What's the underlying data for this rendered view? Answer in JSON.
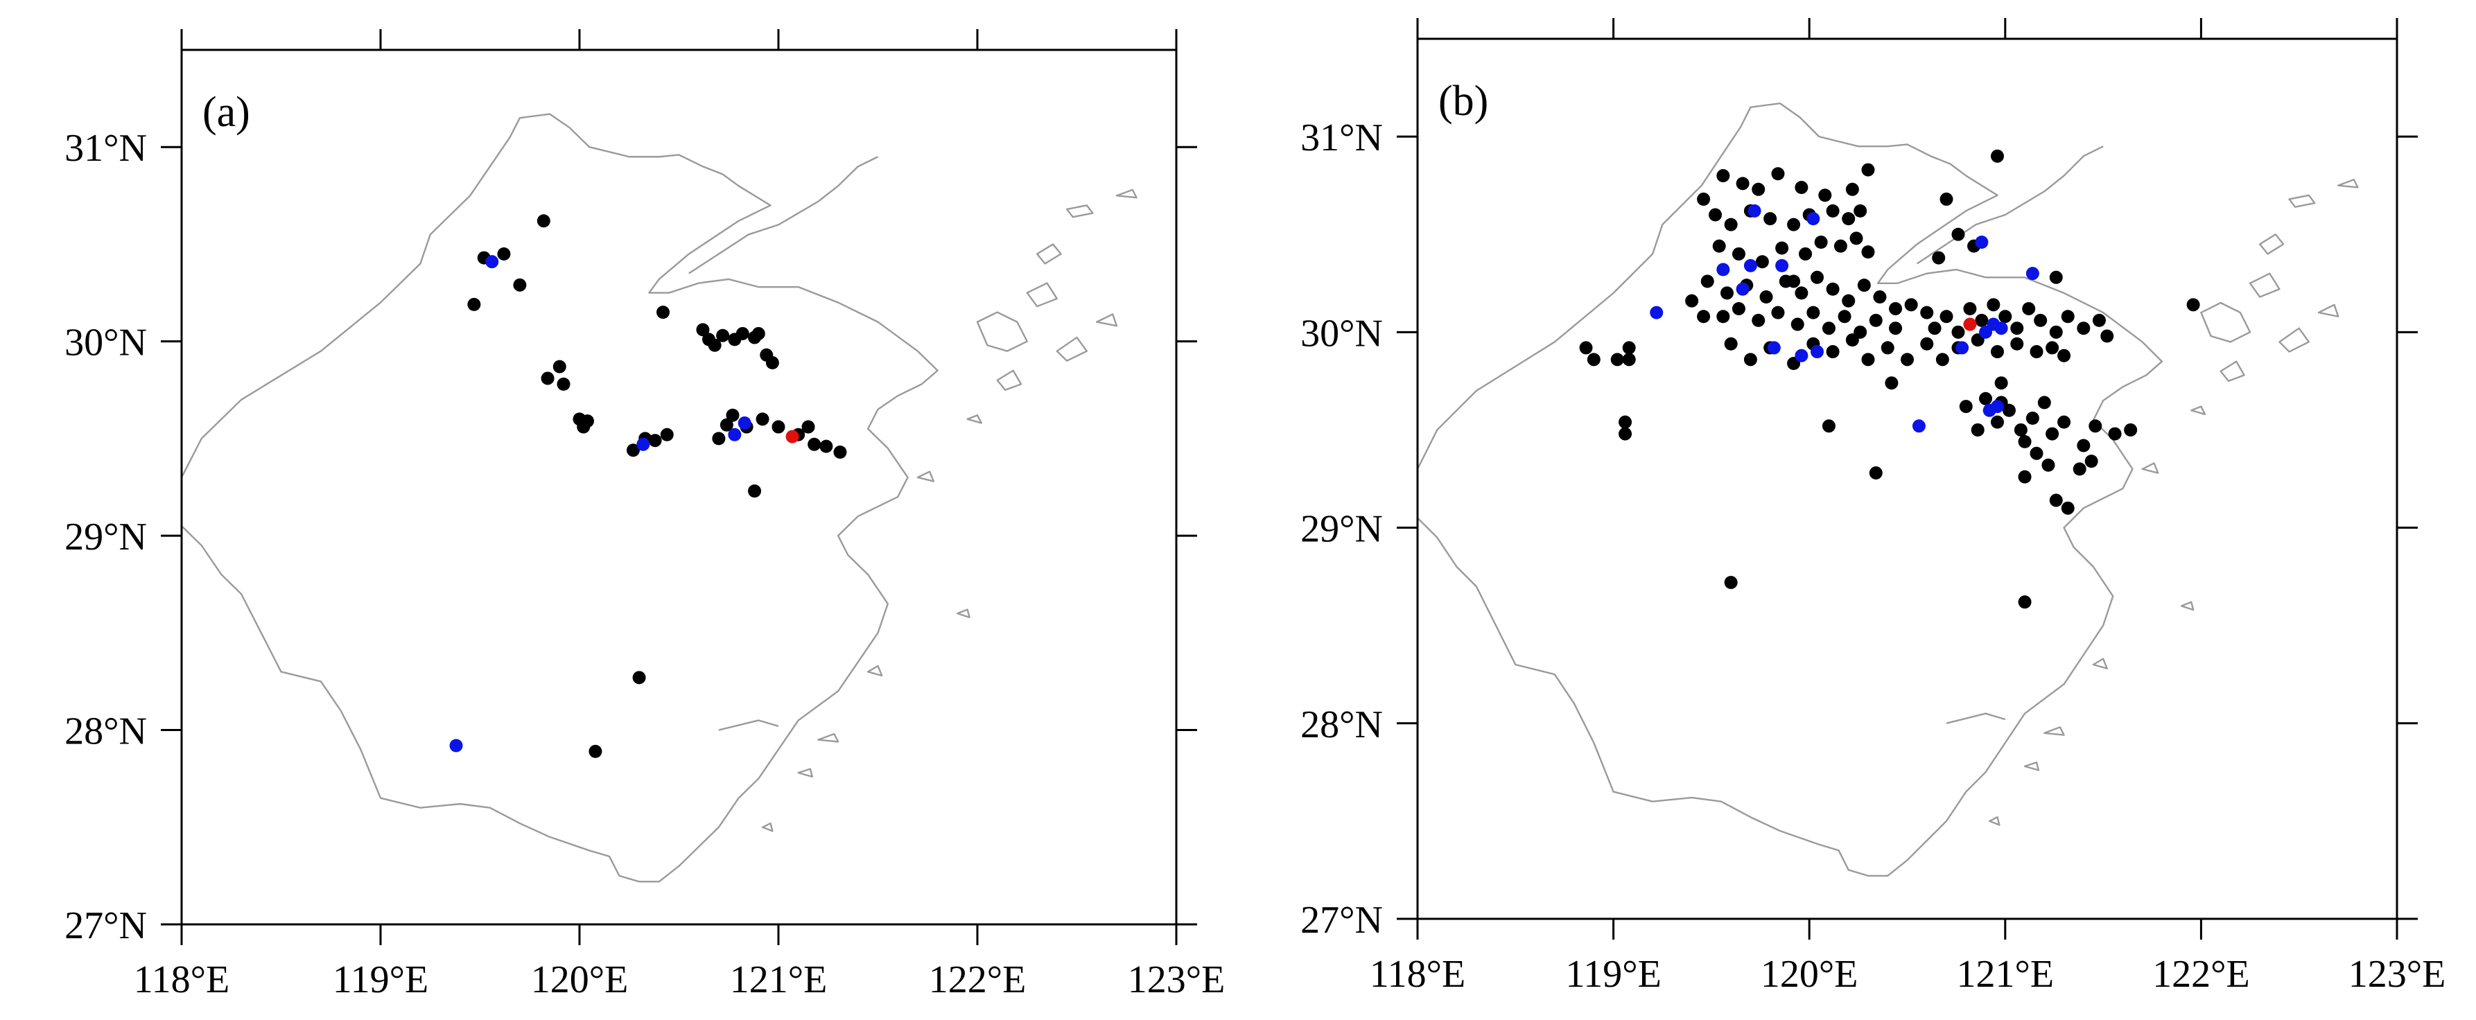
{
  "figure": {
    "colors": {
      "station_black": "#000000",
      "station_blue": "#0a14e6",
      "station_red": "#e01010",
      "coast": "#9a9a9a"
    },
    "lon_range": [
      118,
      123
    ],
    "lat_range": [
      27,
      31.5
    ],
    "panels": [
      {
        "label": "(a)",
        "xtick_labels": [
          "118°E",
          "119°E",
          "120°E",
          "121°E",
          "122°E",
          "123°E"
        ],
        "ytick_labels": [
          "27°N",
          "28°N",
          "29°N",
          "30°N",
          "31°N"
        ],
        "stations": {
          "black": [
            [
              119.82,
              30.62
            ],
            [
              119.52,
              30.43
            ],
            [
              119.62,
              30.45
            ],
            [
              119.47,
              30.19
            ],
            [
              119.7,
              30.29
            ],
            [
              119.84,
              29.81
            ],
            [
              119.9,
              29.87
            ],
            [
              119.92,
              29.78
            ],
            [
              120.0,
              29.6
            ],
            [
              120.02,
              29.56
            ],
            [
              120.04,
              29.59
            ],
            [
              120.42,
              30.15
            ],
            [
              120.62,
              30.06
            ],
            [
              120.65,
              30.01
            ],
            [
              120.68,
              29.98
            ],
            [
              120.72,
              30.03
            ],
            [
              120.78,
              30.01
            ],
            [
              120.82,
              30.04
            ],
            [
              120.88,
              30.02
            ],
            [
              120.9,
              30.04
            ],
            [
              120.94,
              29.93
            ],
            [
              120.97,
              29.89
            ],
            [
              120.27,
              29.44
            ],
            [
              120.33,
              29.5
            ],
            [
              120.38,
              29.49
            ],
            [
              120.44,
              29.52
            ],
            [
              120.3,
              28.27
            ],
            [
              120.08,
              27.89
            ],
            [
              120.7,
              29.5
            ],
            [
              120.74,
              29.57
            ],
            [
              120.77,
              29.62
            ],
            [
              120.84,
              29.56
            ],
            [
              120.92,
              29.6
            ],
            [
              121.0,
              29.56
            ],
            [
              121.1,
              29.52
            ],
            [
              121.15,
              29.56
            ],
            [
              121.18,
              29.47
            ],
            [
              121.24,
              29.46
            ],
            [
              121.31,
              29.43
            ],
            [
              120.88,
              29.23
            ]
          ],
          "blue": [
            [
              119.56,
              30.41
            ],
            [
              120.32,
              29.47
            ],
            [
              120.78,
              29.52
            ],
            [
              120.83,
              29.58
            ],
            [
              119.38,
              27.92
            ]
          ],
          "red": [
            [
              121.07,
              29.51
            ]
          ]
        }
      },
      {
        "label": "(b)",
        "xtick_labels": [
          "118°E",
          "119°E",
          "120°E",
          "121°E",
          "122°E",
          "123°E"
        ],
        "ytick_labels": [
          "27°N",
          "28°N",
          "29°N",
          "30°N",
          "31°N"
        ],
        "stations": {
          "black": [
            [
              119.56,
              30.8
            ],
            [
              119.66,
              30.76
            ],
            [
              119.74,
              30.73
            ],
            [
              119.84,
              30.81
            ],
            [
              119.96,
              30.74
            ],
            [
              120.08,
              30.7
            ],
            [
              120.22,
              30.73
            ],
            [
              120.3,
              30.83
            ],
            [
              119.46,
              30.68
            ],
            [
              119.52,
              30.6
            ],
            [
              119.6,
              30.55
            ],
            [
              119.7,
              30.62
            ],
            [
              119.8,
              30.58
            ],
            [
              119.92,
              30.55
            ],
            [
              120.0,
              30.6
            ],
            [
              120.12,
              30.62
            ],
            [
              120.2,
              30.58
            ],
            [
              120.26,
              30.62
            ],
            [
              119.54,
              30.44
            ],
            [
              119.64,
              30.4
            ],
            [
              119.76,
              30.36
            ],
            [
              119.86,
              30.43
            ],
            [
              119.98,
              30.4
            ],
            [
              120.06,
              30.46
            ],
            [
              120.16,
              30.44
            ],
            [
              120.24,
              30.48
            ],
            [
              120.3,
              30.41
            ],
            [
              119.48,
              30.26
            ],
            [
              119.58,
              30.2
            ],
            [
              119.68,
              30.24
            ],
            [
              119.78,
              30.18
            ],
            [
              119.88,
              30.26
            ],
            [
              119.96,
              30.2
            ],
            [
              120.04,
              30.28
            ],
            [
              120.12,
              30.22
            ],
            [
              120.2,
              30.16
            ],
            [
              120.28,
              30.24
            ],
            [
              120.36,
              30.18
            ],
            [
              120.44,
              30.12
            ],
            [
              119.4,
              30.16
            ],
            [
              119.46,
              30.08
            ],
            [
              119.56,
              30.08
            ],
            [
              119.64,
              30.12
            ],
            [
              119.74,
              30.06
            ],
            [
              119.84,
              30.1
            ],
            [
              119.94,
              30.04
            ],
            [
              120.02,
              30.1
            ],
            [
              120.1,
              30.02
            ],
            [
              120.18,
              30.08
            ],
            [
              120.26,
              30.0
            ],
            [
              120.34,
              30.06
            ],
            [
              120.44,
              30.02
            ],
            [
              120.52,
              30.14
            ],
            [
              120.6,
              30.1
            ],
            [
              120.64,
              30.02
            ],
            [
              120.7,
              30.08
            ],
            [
              120.76,
              30.0
            ],
            [
              120.82,
              30.12
            ],
            [
              120.88,
              30.06
            ],
            [
              120.94,
              30.14
            ],
            [
              121.0,
              30.08
            ],
            [
              121.06,
              30.02
            ],
            [
              121.12,
              30.12
            ],
            [
              121.18,
              30.06
            ],
            [
              121.26,
              30.0
            ],
            [
              121.32,
              30.08
            ],
            [
              121.4,
              30.02
            ],
            [
              121.48,
              30.06
            ],
            [
              121.52,
              29.98
            ],
            [
              119.6,
              29.94
            ],
            [
              119.7,
              29.86
            ],
            [
              119.8,
              29.92
            ],
            [
              119.92,
              29.84
            ],
            [
              120.02,
              29.94
            ],
            [
              120.12,
              29.9
            ],
            [
              120.22,
              29.96
            ],
            [
              120.3,
              29.86
            ],
            [
              120.4,
              29.92
            ],
            [
              120.5,
              29.86
            ],
            [
              120.6,
              29.94
            ],
            [
              120.68,
              29.86
            ],
            [
              120.76,
              29.92
            ],
            [
              120.86,
              29.96
            ],
            [
              120.96,
              29.9
            ],
            [
              121.06,
              29.94
            ],
            [
              121.16,
              29.9
            ],
            [
              121.24,
              29.92
            ],
            [
              121.3,
              29.88
            ],
            [
              120.9,
              29.66
            ],
            [
              120.96,
              29.54
            ],
            [
              121.02,
              29.6
            ],
            [
              121.08,
              29.5
            ],
            [
              121.14,
              29.56
            ],
            [
              121.2,
              29.64
            ],
            [
              121.24,
              29.48
            ],
            [
              121.3,
              29.54
            ],
            [
              120.86,
              29.5
            ],
            [
              120.8,
              29.62
            ],
            [
              121.1,
              29.44
            ],
            [
              121.16,
              29.38
            ],
            [
              121.22,
              29.32
            ],
            [
              121.4,
              29.42
            ],
            [
              121.46,
              29.52
            ],
            [
              121.56,
              29.48
            ],
            [
              121.64,
              29.5
            ],
            [
              121.44,
              29.34
            ],
            [
              121.38,
              29.3
            ],
            [
              121.1,
              29.26
            ],
            [
              121.26,
              29.14
            ],
            [
              121.32,
              29.1
            ],
            [
              120.42,
              29.74
            ],
            [
              120.34,
              29.28
            ],
            [
              120.1,
              29.52
            ],
            [
              121.26,
              30.28
            ],
            [
              120.7,
              30.68
            ],
            [
              120.76,
              30.5
            ],
            [
              120.84,
              30.44
            ],
            [
              120.96,
              30.9
            ],
            [
              121.96,
              30.14
            ],
            [
              120.66,
              30.38
            ],
            [
              119.92,
              30.26
            ],
            [
              118.86,
              29.92
            ],
            [
              118.9,
              29.86
            ],
            [
              119.02,
              29.86
            ],
            [
              119.08,
              29.92
            ],
            [
              119.08,
              29.86
            ],
            [
              119.06,
              29.54
            ],
            [
              119.06,
              29.48
            ],
            [
              119.6,
              28.72
            ],
            [
              121.1,
              28.62
            ],
            [
              120.98,
              29.64
            ],
            [
              120.98,
              29.74
            ]
          ],
          "blue": [
            [
              119.72,
              30.62
            ],
            [
              119.56,
              30.32
            ],
            [
              119.7,
              30.34
            ],
            [
              119.86,
              30.34
            ],
            [
              120.02,
              30.58
            ],
            [
              119.66,
              30.22
            ],
            [
              119.82,
              29.92
            ],
            [
              119.96,
              29.88
            ],
            [
              120.04,
              29.9
            ],
            [
              120.88,
              30.46
            ],
            [
              121.14,
              30.3
            ],
            [
              119.22,
              30.1
            ],
            [
              120.56,
              29.52
            ],
            [
              120.92,
              29.6
            ],
            [
              120.96,
              29.62
            ],
            [
              120.94,
              30.04
            ],
            [
              120.98,
              30.02
            ],
            [
              120.78,
              29.92
            ],
            [
              120.9,
              30.0
            ]
          ],
          "red": [
            [
              120.82,
              30.04
            ]
          ]
        }
      }
    ]
  }
}
